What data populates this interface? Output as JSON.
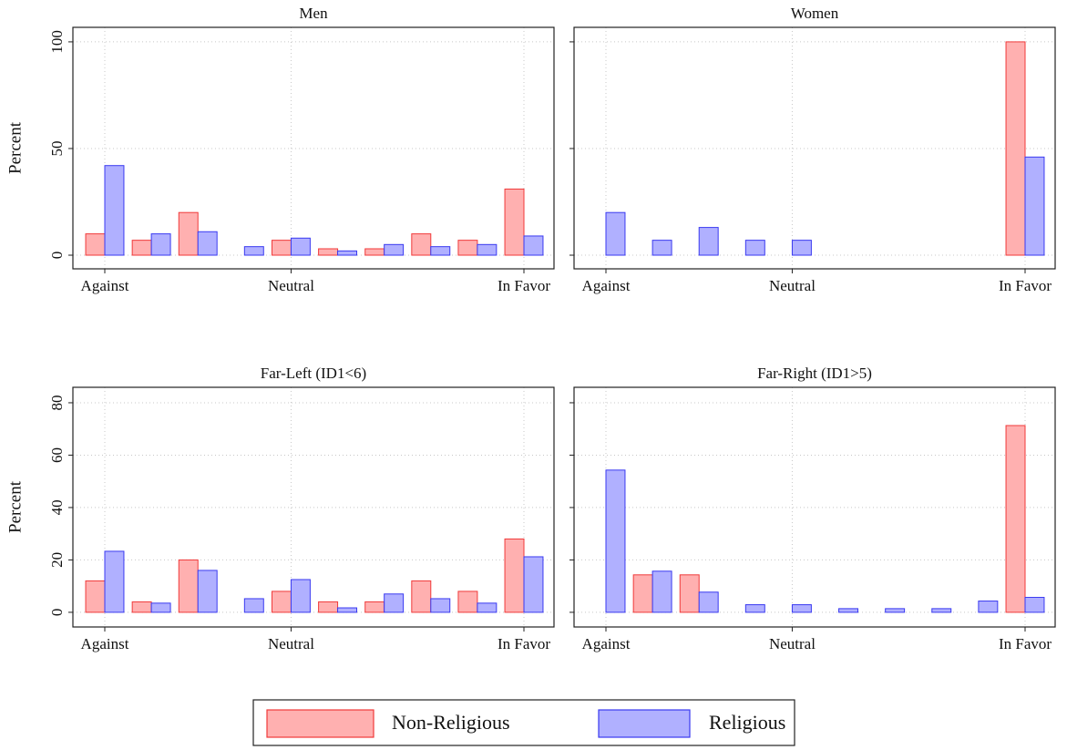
{
  "chart_data": [
    {
      "type": "bar",
      "title": "Men",
      "ylabel": "Percent",
      "categories": [
        "Against",
        null,
        null,
        null,
        "Neutral",
        null,
        null,
        null,
        null,
        "In Favor"
      ],
      "series": [
        {
          "name": "Non-Religious",
          "color": "#ffb0b0",
          "edgecolor": "#f03a3a",
          "values": [
            10,
            7,
            20,
            0,
            7,
            3,
            3,
            10,
            7,
            31
          ]
        },
        {
          "name": "Religious",
          "color": "#b0b0ff",
          "edgecolor": "#3a3af0",
          "values": [
            42,
            10,
            11,
            4,
            8,
            2,
            5,
            4,
            5,
            9
          ]
        }
      ],
      "ylim": [
        -6.4,
        106.8
      ],
      "yticks": [
        0,
        50,
        100
      ],
      "grid": true,
      "show_ytick_labels": true
    },
    {
      "type": "bar",
      "title": "Women",
      "categories": [
        "Against",
        null,
        null,
        null,
        "Neutral",
        null,
        null,
        null,
        null,
        "In Favor"
      ],
      "series": [
        {
          "color": "#ffb0b0",
          "edgecolor": "#f03a3a",
          "values": [
            0,
            0,
            0,
            0,
            0,
            0,
            0,
            0,
            0,
            100
          ]
        },
        {
          "color": "#b0b0ff",
          "edgecolor": "#3a3af0",
          "values": [
            20,
            7,
            13,
            7,
            7,
            0,
            0,
            0,
            0,
            46
          ]
        }
      ],
      "ylim": [
        -6.4,
        106.8
      ],
      "yticks": [
        0,
        50,
        100
      ],
      "grid": true,
      "show_ytick_labels": false
    },
    {
      "type": "bar",
      "title": "Far-Left (ID1<6)",
      "ylabel": "Percent",
      "categories": [
        "Against",
        null,
        null,
        null,
        "Neutral",
        null,
        null,
        null,
        null,
        "In Favor"
      ],
      "series": [
        {
          "color": "#ffb0b0",
          "edgecolor": "#f03a3a",
          "values": [
            12,
            4,
            20,
            0,
            8,
            4,
            4,
            12,
            8,
            28
          ]
        },
        {
          "color": "#b0b0ff",
          "edgecolor": "#3a3af0",
          "values": [
            23.3,
            3.5,
            16,
            5.2,
            12.5,
            1.7,
            7,
            5.2,
            3.5,
            21.2
          ]
        }
      ],
      "ylim": [
        -5.6,
        85.9
      ],
      "yticks": [
        0,
        20,
        40,
        60,
        80
      ],
      "grid": true,
      "show_ytick_labels": true
    },
    {
      "type": "bar",
      "title": "Far-Right (ID1>5)",
      "categories": [
        "Against",
        null,
        null,
        null,
        "Neutral",
        null,
        null,
        null,
        null,
        "In Favor"
      ],
      "series": [
        {
          "color": "#ffb0b0",
          "edgecolor": "#f03a3a",
          "values": [
            0,
            14.3,
            14.3,
            0,
            0,
            0,
            0,
            0,
            0,
            71.3
          ]
        },
        {
          "color": "#b0b0ff",
          "edgecolor": "#3a3af0",
          "values": [
            54.3,
            15.7,
            7.7,
            2.9,
            2.9,
            1.4,
            1.4,
            1.4,
            4.3,
            5.7
          ]
        }
      ],
      "ylim": [
        -5.6,
        85.9
      ],
      "yticks": [
        0,
        20,
        40,
        60,
        80
      ],
      "grid": true,
      "show_ytick_labels": false
    }
  ]
}
